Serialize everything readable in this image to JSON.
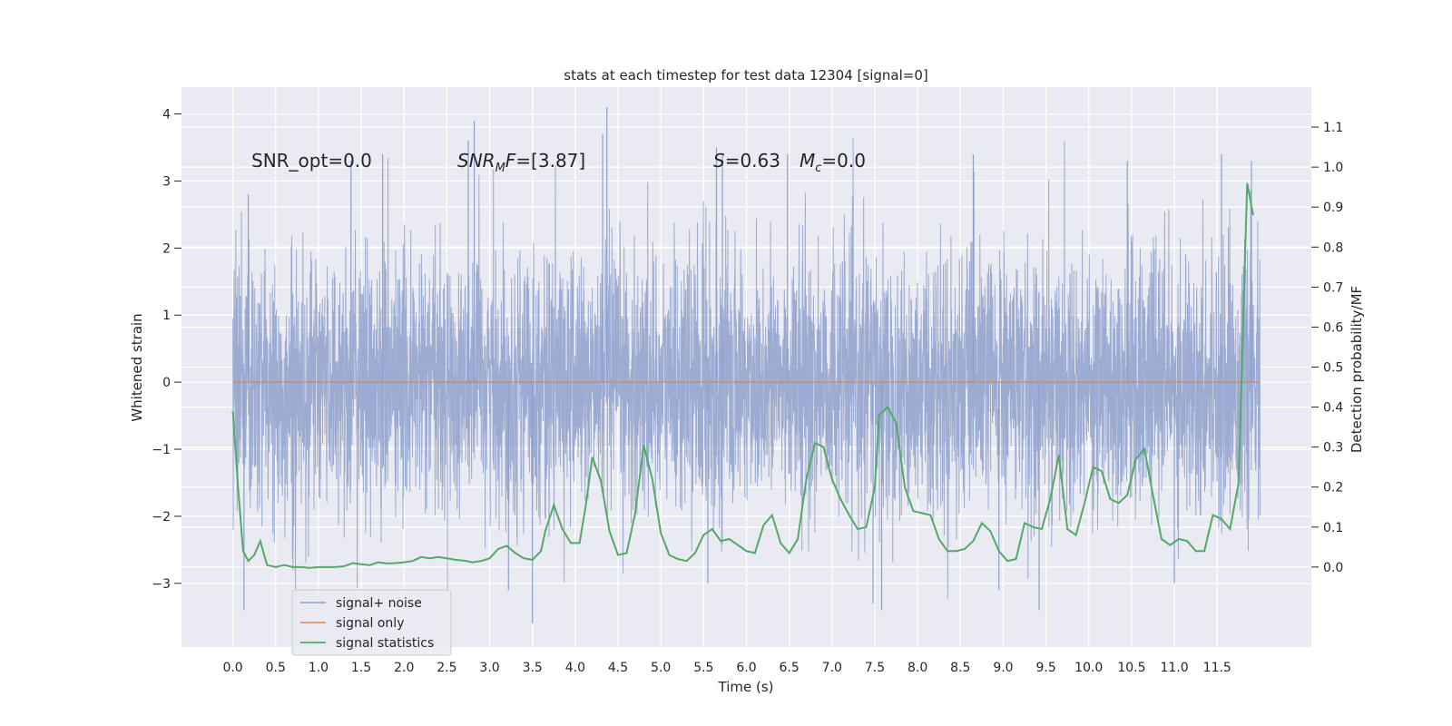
{
  "chart_data": {
    "type": "line",
    "title": "stats at each timestep for test data 12304 [signal=0]",
    "xlabel": "Time (s)",
    "ylabel": "Whitened strain",
    "y2label": "Detection probability/MF",
    "xlim": [
      -0.6,
      12.6
    ],
    "ylim": [
      -3.95,
      4.4
    ],
    "y2lim": [
      -0.2,
      1.2
    ],
    "x_ticks": [
      0.0,
      0.5,
      1.0,
      1.5,
      2.0,
      2.5,
      3.0,
      3.5,
      4.0,
      4.5,
      5.0,
      5.5,
      6.0,
      6.5,
      7.0,
      7.5,
      8.0,
      8.5,
      9.0,
      9.5,
      10.0,
      10.5,
      11.0,
      11.5
    ],
    "x_tick_labels": [
      "0.0",
      "0.5",
      "1.0",
      "1.5",
      "2.0",
      "2.5",
      "3.0",
      "3.5",
      "4.0",
      "4.5",
      "5.0",
      "5.5",
      "6.0",
      "6.5",
      "7.0",
      "7.5",
      "8.0",
      "8.5",
      "9.0",
      "9.5",
      "10.0",
      "10.5",
      "11.0",
      "11.5"
    ],
    "y_ticks": [
      -3,
      -2,
      -1,
      0,
      1,
      2,
      3,
      4
    ],
    "y_tick_labels": [
      "−3",
      "−2",
      "−1",
      "0",
      "1",
      "2",
      "3",
      "4"
    ],
    "y2_ticks": [
      0.0,
      0.1,
      0.2,
      0.3,
      0.4,
      0.5,
      0.6,
      0.7,
      0.8,
      0.9,
      1.0,
      1.1
    ],
    "y2_tick_labels": [
      "0.0",
      "0.1",
      "0.2",
      "0.3",
      "0.4",
      "0.5",
      "0.6",
      "0.7",
      "0.8",
      "0.9",
      "1.0",
      "1.1"
    ],
    "grid": true,
    "legend_position": "lower-left",
    "annotations": {
      "snr_opt": "SNR_opt=0.0",
      "snr_mf_base": "SNR",
      "snr_mf_sub": "M",
      "snr_mf_tail": "F=[3.87]",
      "s_symbol": "S",
      "s_value": "=0.63",
      "mc_base": "M",
      "mc_sub": "c",
      "mc_value": "=0.0"
    },
    "series": [
      {
        "name": "signal+ noise",
        "axis": "left",
        "color": "#8da0cb",
        "style": "dense-noise",
        "x_range": [
          0.0,
          12.0
        ],
        "typical_range": [
          -1.5,
          1.5
        ],
        "peak_values": [
          {
            "x": 0.18,
            "y": 2.8
          },
          {
            "x": 0.13,
            "y": -3.4
          },
          {
            "x": 1.38,
            "y": 3.3
          },
          {
            "x": 1.75,
            "y": 3.4
          },
          {
            "x": 2.82,
            "y": 3.9
          },
          {
            "x": 2.75,
            "y": 3.6
          },
          {
            "x": 3.22,
            "y": -3.1
          },
          {
            "x": 3.5,
            "y": -3.6
          },
          {
            "x": 4.32,
            "y": 3.7
          },
          {
            "x": 4.37,
            "y": 4.1
          },
          {
            "x": 5.55,
            "y": -3.0
          },
          {
            "x": 5.65,
            "y": 3.5
          },
          {
            "x": 5.72,
            "y": 3.4
          },
          {
            "x": 6.48,
            "y": 3.4
          },
          {
            "x": 7.48,
            "y": -3.3
          },
          {
            "x": 7.58,
            "y": -3.4
          },
          {
            "x": 8.65,
            "y": 3.4
          },
          {
            "x": 8.95,
            "y": -3.1
          },
          {
            "x": 9.42,
            "y": -3.4
          },
          {
            "x": 10.45,
            "y": 3.3
          },
          {
            "x": 11.0,
            "y": -3.0
          },
          {
            "x": 11.55,
            "y": 3.4
          },
          {
            "x": 11.9,
            "y": 3.3
          }
        ]
      },
      {
        "name": "signal only",
        "axis": "left",
        "color": "#dd8452",
        "x": [
          0.0,
          12.0
        ],
        "y": [
          0.0,
          0.0
        ]
      },
      {
        "name": "signal statistics",
        "axis": "right",
        "color": "#55a868",
        "x": [
          0.0,
          0.06,
          0.12,
          0.18,
          0.25,
          0.32,
          0.4,
          0.5,
          0.6,
          0.7,
          0.8,
          0.9,
          1.0,
          1.1,
          1.2,
          1.3,
          1.4,
          1.5,
          1.6,
          1.7,
          1.8,
          1.9,
          2.0,
          2.1,
          2.2,
          2.3,
          2.4,
          2.5,
          2.6,
          2.7,
          2.8,
          2.9,
          3.0,
          3.1,
          3.2,
          3.3,
          3.4,
          3.5,
          3.6,
          3.65,
          3.75,
          3.85,
          3.95,
          4.05,
          4.12,
          4.2,
          4.3,
          4.4,
          4.5,
          4.6,
          4.7,
          4.8,
          4.9,
          5.0,
          5.1,
          5.2,
          5.3,
          5.4,
          5.5,
          5.6,
          5.7,
          5.8,
          5.9,
          6.0,
          6.1,
          6.2,
          6.3,
          6.4,
          6.5,
          6.6,
          6.7,
          6.8,
          6.9,
          7.0,
          7.1,
          7.2,
          7.3,
          7.4,
          7.5,
          7.55,
          7.65,
          7.75,
          7.85,
          7.95,
          8.05,
          8.15,
          8.25,
          8.35,
          8.45,
          8.55,
          8.65,
          8.75,
          8.85,
          8.95,
          9.05,
          9.15,
          9.25,
          9.35,
          9.45,
          9.55,
          9.65,
          9.75,
          9.85,
          9.95,
          10.05,
          10.15,
          10.25,
          10.35,
          10.45,
          10.55,
          10.65,
          10.75,
          10.85,
          10.95,
          11.05,
          11.15,
          11.25,
          11.35,
          11.45,
          11.55,
          11.65,
          11.75,
          11.85,
          11.92
        ],
        "y": [
          0.39,
          0.2,
          0.04,
          0.015,
          0.03,
          0.065,
          0.005,
          0.0,
          0.005,
          0.0,
          0.0,
          -0.002,
          0.0,
          0.0,
          0.0,
          0.002,
          0.01,
          0.007,
          0.005,
          0.012,
          0.009,
          0.01,
          0.012,
          0.015,
          0.025,
          0.022,
          0.025,
          0.022,
          0.018,
          0.016,
          0.012,
          0.015,
          0.022,
          0.045,
          0.053,
          0.035,
          0.022,
          0.018,
          0.04,
          0.09,
          0.155,
          0.095,
          0.06,
          0.06,
          0.15,
          0.275,
          0.215,
          0.09,
          0.03,
          0.035,
          0.135,
          0.305,
          0.22,
          0.085,
          0.03,
          0.02,
          0.015,
          0.035,
          0.08,
          0.095,
          0.065,
          0.07,
          0.055,
          0.04,
          0.035,
          0.105,
          0.13,
          0.06,
          0.035,
          0.07,
          0.22,
          0.31,
          0.3,
          0.22,
          0.17,
          0.13,
          0.095,
          0.1,
          0.2,
          0.38,
          0.4,
          0.36,
          0.2,
          0.14,
          0.135,
          0.13,
          0.07,
          0.04,
          0.04,
          0.045,
          0.065,
          0.11,
          0.09,
          0.04,
          0.015,
          0.02,
          0.11,
          0.1,
          0.095,
          0.17,
          0.28,
          0.095,
          0.08,
          0.16,
          0.25,
          0.24,
          0.17,
          0.16,
          0.18,
          0.27,
          0.295,
          0.18,
          0.07,
          0.055,
          0.07,
          0.065,
          0.04,
          0.04,
          0.13,
          0.12,
          0.095,
          0.21,
          0.96,
          0.88
        ]
      }
    ]
  }
}
